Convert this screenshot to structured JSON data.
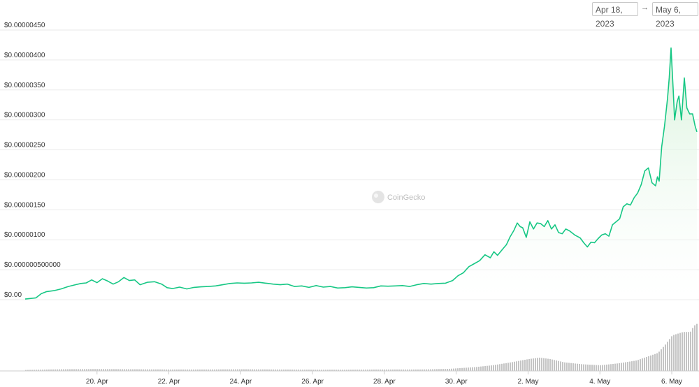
{
  "date_range": {
    "from": "Apr 18, 2023",
    "arrow": "→",
    "to": "May 6, 2023"
  },
  "watermark": "CoinGecko",
  "colors": {
    "line": "#16c784",
    "fill_top": "#d2f1d6",
    "grid": "#eaeaea",
    "volume": "#c4c4c4"
  },
  "chart_data": {
    "type": "area",
    "yticks": [
      {
        "value": 0,
        "label": "$0.00"
      },
      {
        "value": 5e-07,
        "label": "$0.000000500000"
      },
      {
        "value": 1e-06,
        "label": "$0.00000100"
      },
      {
        "value": 1.5e-06,
        "label": "$0.00000150"
      },
      {
        "value": 2e-06,
        "label": "$0.00000200"
      },
      {
        "value": 2.5e-06,
        "label": "$0.00000250"
      },
      {
        "value": 3e-06,
        "label": "$0.00000300"
      },
      {
        "value": 3.5e-06,
        "label": "$0.00000350"
      },
      {
        "value": 4e-06,
        "label": "$0.00000400"
      },
      {
        "value": 4.5e-06,
        "label": "$0.00000450"
      }
    ],
    "ylim": [
      0,
      4.5e-06
    ],
    "xlim": [
      18.0,
      36.7
    ],
    "xticks": [
      {
        "value": 20,
        "label": "20. Apr"
      },
      {
        "value": 22,
        "label": "22. Apr"
      },
      {
        "value": 24,
        "label": "24. Apr"
      },
      {
        "value": 26,
        "label": "26. Apr"
      },
      {
        "value": 28,
        "label": "28. Apr"
      },
      {
        "value": 30,
        "label": "30. Apr"
      },
      {
        "value": 32,
        "label": "2. May"
      },
      {
        "value": 34,
        "label": "4. May"
      },
      {
        "value": 36,
        "label": "6. May"
      }
    ],
    "price": [
      [
        18.0,
        1e-08
      ],
      [
        18.3,
        3e-08
      ],
      [
        18.45,
        1e-07
      ],
      [
        18.6,
        1.35e-07
      ],
      [
        18.8,
        1.5e-07
      ],
      [
        19.0,
        1.8e-07
      ],
      [
        19.2,
        2.2e-07
      ],
      [
        19.4,
        2.5e-07
      ],
      [
        19.55,
        2.7e-07
      ],
      [
        19.7,
        2.8e-07
      ],
      [
        19.85,
        3.3e-07
      ],
      [
        20.0,
        2.85e-07
      ],
      [
        20.15,
        3.5e-07
      ],
      [
        20.3,
        3.1e-07
      ],
      [
        20.45,
        2.6e-07
      ],
      [
        20.6,
        3e-07
      ],
      [
        20.75,
        3.7e-07
      ],
      [
        20.9,
        3.2e-07
      ],
      [
        21.05,
        3.3e-07
      ],
      [
        21.2,
        2.5e-07
      ],
      [
        21.4,
        2.9e-07
      ],
      [
        21.6,
        3e-07
      ],
      [
        21.8,
        2.6e-07
      ],
      [
        21.95,
        2e-07
      ],
      [
        22.1,
        1.85e-07
      ],
      [
        22.3,
        2.1e-07
      ],
      [
        22.5,
        1.8e-07
      ],
      [
        22.7,
        2.05e-07
      ],
      [
        22.9,
        2.15e-07
      ],
      [
        23.1,
        2.2e-07
      ],
      [
        23.3,
        2.3e-07
      ],
      [
        23.5,
        2.5e-07
      ],
      [
        23.7,
        2.7e-07
      ],
      [
        23.9,
        2.8e-07
      ],
      [
        24.1,
        2.75e-07
      ],
      [
        24.3,
        2.8e-07
      ],
      [
        24.5,
        2.9e-07
      ],
      [
        24.7,
        2.75e-07
      ],
      [
        24.9,
        2.6e-07
      ],
      [
        25.1,
        2.5e-07
      ],
      [
        25.3,
        2.6e-07
      ],
      [
        25.5,
        2.2e-07
      ],
      [
        25.7,
        2.3e-07
      ],
      [
        25.9,
        2.05e-07
      ],
      [
        26.1,
        2.35e-07
      ],
      [
        26.3,
        2.1e-07
      ],
      [
        26.5,
        2.2e-07
      ],
      [
        26.7,
        1.95e-07
      ],
      [
        26.9,
        2e-07
      ],
      [
        27.1,
        2.15e-07
      ],
      [
        27.3,
        2.05e-07
      ],
      [
        27.5,
        1.95e-07
      ],
      [
        27.7,
        2e-07
      ],
      [
        27.9,
        2.3e-07
      ],
      [
        28.1,
        2.25e-07
      ],
      [
        28.3,
        2.3e-07
      ],
      [
        28.5,
        2.35e-07
      ],
      [
        28.7,
        2.2e-07
      ],
      [
        28.9,
        2.5e-07
      ],
      [
        29.1,
        2.7e-07
      ],
      [
        29.3,
        2.6e-07
      ],
      [
        29.5,
        2.7e-07
      ],
      [
        29.7,
        2.75e-07
      ],
      [
        29.9,
        3.2e-07
      ],
      [
        30.05,
        4e-07
      ],
      [
        30.2,
        4.5e-07
      ],
      [
        30.35,
        5.5e-07
      ],
      [
        30.5,
        6e-07
      ],
      [
        30.65,
        6.5e-07
      ],
      [
        30.8,
        7.5e-07
      ],
      [
        30.95,
        7e-07
      ],
      [
        31.05,
        8e-07
      ],
      [
        31.15,
        7.4e-07
      ],
      [
        31.3,
        8.5e-07
      ],
      [
        31.4,
        9.2e-07
      ],
      [
        31.5,
        1.05e-06
      ],
      [
        31.6,
        1.15e-06
      ],
      [
        31.7,
        1.28e-06
      ],
      [
        31.78,
        1.22e-06
      ],
      [
        31.85,
        1.2e-06
      ],
      [
        31.95,
        1.04e-06
      ],
      [
        32.05,
        1.3e-06
      ],
      [
        32.15,
        1.18e-06
      ],
      [
        32.25,
        1.28e-06
      ],
      [
        32.35,
        1.27e-06
      ],
      [
        32.45,
        1.22e-06
      ],
      [
        32.55,
        1.32e-06
      ],
      [
        32.65,
        1.18e-06
      ],
      [
        32.75,
        1.25e-06
      ],
      [
        32.85,
        1.12e-06
      ],
      [
        32.95,
        1.1e-06
      ],
      [
        33.05,
        1.18e-06
      ],
      [
        33.15,
        1.15e-06
      ],
      [
        33.3,
        1.08e-06
      ],
      [
        33.45,
        1.03e-06
      ],
      [
        33.55,
        9.5e-07
      ],
      [
        33.65,
        8.8e-07
      ],
      [
        33.75,
        9.6e-07
      ],
      [
        33.85,
        9.5e-07
      ],
      [
        33.95,
        1.02e-06
      ],
      [
        34.05,
        1.08e-06
      ],
      [
        34.15,
        1.1e-06
      ],
      [
        34.25,
        1.06e-06
      ],
      [
        34.35,
        1.25e-06
      ],
      [
        34.45,
        1.3e-06
      ],
      [
        34.55,
        1.35e-06
      ],
      [
        34.65,
        1.55e-06
      ],
      [
        34.75,
        1.6e-06
      ],
      [
        34.85,
        1.58e-06
      ],
      [
        34.95,
        1.7e-06
      ],
      [
        35.05,
        1.78e-06
      ],
      [
        35.15,
        1.92e-06
      ],
      [
        35.25,
        2.15e-06
      ],
      [
        35.35,
        2.2e-06
      ],
      [
        35.45,
        1.95e-06
      ],
      [
        35.55,
        1.9e-06
      ],
      [
        35.6,
        2.05e-06
      ],
      [
        35.65,
        1.98e-06
      ],
      [
        35.72,
        2.55e-06
      ],
      [
        35.8,
        2.9e-06
      ],
      [
        35.88,
        3.35e-06
      ],
      [
        35.93,
        3.7e-06
      ],
      [
        35.98,
        4.2e-06
      ],
      [
        36.04,
        3.5e-06
      ],
      [
        36.08,
        3e-06
      ],
      [
        36.15,
        3.3e-06
      ],
      [
        36.2,
        3.4e-06
      ],
      [
        36.27,
        3e-06
      ],
      [
        36.35,
        3.7e-06
      ],
      [
        36.42,
        3.2e-06
      ],
      [
        36.5,
        3.1e-06
      ],
      [
        36.58,
        3.1e-06
      ],
      [
        36.65,
        2.9e-06
      ],
      [
        36.7,
        2.8e-06
      ]
    ],
    "volume_relative": [
      [
        18.0,
        0.02
      ],
      [
        19.0,
        0.035
      ],
      [
        20.0,
        0.04
      ],
      [
        21.0,
        0.035
      ],
      [
        22.0,
        0.03
      ],
      [
        23.0,
        0.03
      ],
      [
        24.0,
        0.035
      ],
      [
        25.0,
        0.03
      ],
      [
        26.0,
        0.025
      ],
      [
        27.0,
        0.025
      ],
      [
        28.0,
        0.03
      ],
      [
        29.0,
        0.03
      ],
      [
        29.8,
        0.045
      ],
      [
        30.5,
        0.08
      ],
      [
        31.0,
        0.12
      ],
      [
        31.5,
        0.18
      ],
      [
        32.0,
        0.25
      ],
      [
        32.3,
        0.28
      ],
      [
        32.6,
        0.25
      ],
      [
        33.0,
        0.18
      ],
      [
        33.5,
        0.14
      ],
      [
        34.0,
        0.12
      ],
      [
        34.5,
        0.16
      ],
      [
        35.0,
        0.22
      ],
      [
        35.3,
        0.3
      ],
      [
        35.6,
        0.38
      ],
      [
        35.8,
        0.55
      ],
      [
        36.0,
        0.75
      ],
      [
        36.3,
        0.82
      ],
      [
        36.5,
        0.82
      ],
      [
        36.6,
        0.95
      ],
      [
        36.7,
        1.0
      ]
    ]
  }
}
